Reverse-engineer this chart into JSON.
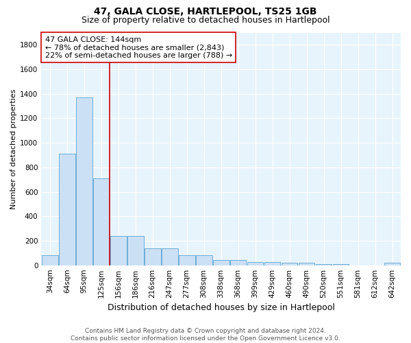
{
  "title": "47, GALA CLOSE, HARTLEPOOL, TS25 1GB",
  "subtitle": "Size of property relative to detached houses in Hartlepool",
  "xlabel": "Distribution of detached houses by size in Hartlepool",
  "ylabel": "Number of detached properties",
  "categories": [
    "34sqm",
    "64sqm",
    "95sqm",
    "125sqm",
    "156sqm",
    "186sqm",
    "216sqm",
    "247sqm",
    "277sqm",
    "308sqm",
    "338sqm",
    "368sqm",
    "399sqm",
    "429sqm",
    "460sqm",
    "490sqm",
    "520sqm",
    "551sqm",
    "581sqm",
    "612sqm",
    "642sqm"
  ],
  "values": [
    80,
    910,
    1370,
    710,
    240,
    240,
    140,
    140,
    80,
    80,
    45,
    45,
    28,
    28,
    20,
    20,
    8,
    8,
    0,
    0,
    20
  ],
  "bar_color": "#cce0f5",
  "bar_edge_color": "#6aaed6",
  "vline_color": "#cc0000",
  "annotation_line1": "47 GALA CLOSE: 144sqm",
  "annotation_line2": "← 78% of detached houses are smaller (2,843)",
  "annotation_line3": "22% of semi-detached houses are larger (788) →",
  "annotation_box_color": "#ffffff",
  "annotation_box_edge_color": "#cc0000",
  "ylim": [
    0,
    1900
  ],
  "yticks": [
    0,
    200,
    400,
    600,
    800,
    1000,
    1200,
    1400,
    1600,
    1800
  ],
  "footnote": "Contains HM Land Registry data © Crown copyright and database right 2024.\nContains public sector information licensed under the Open Government Licence v3.0.",
  "plot_bg_color": "#e8f4fb",
  "title_fontsize": 10,
  "subtitle_fontsize": 9,
  "xlabel_fontsize": 9,
  "ylabel_fontsize": 8,
  "tick_fontsize": 7.5,
  "annotation_fontsize": 8,
  "footnote_fontsize": 6.5
}
